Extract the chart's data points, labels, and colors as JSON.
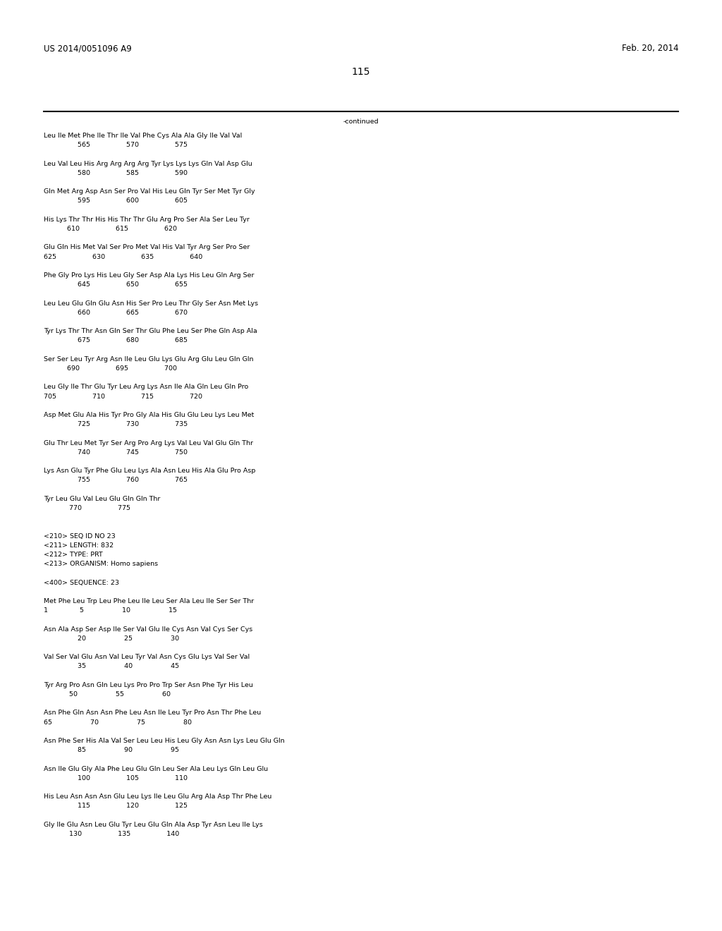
{
  "header_left": "US 2014/0051096 A9",
  "header_right": "Feb. 20, 2014",
  "page_number": "115",
  "continued_label": "-continued",
  "background_color": "#ffffff",
  "text_color": "#000000",
  "font_size": 6.8,
  "header_font_size": 8.5,
  "page_num_font_size": 10,
  "content_lines": [
    "Leu Ile Met Phe Ile Thr Ile Val Phe Cys Ala Ala Gly Ile Val Val",
    "                565                 570                 575",
    "",
    "Leu Val Leu His Arg Arg Arg Arg Tyr Lys Lys Lys Gln Val Asp Glu",
    "                580                 585                 590",
    "",
    "Gln Met Arg Asp Asn Ser Pro Val His Leu Gln Tyr Ser Met Tyr Gly",
    "                595                 600                 605",
    "",
    "His Lys Thr Thr His His Thr Thr Glu Arg Pro Ser Ala Ser Leu Tyr",
    "           610                 615                 620",
    "",
    "Glu Gln His Met Val Ser Pro Met Val His Val Tyr Arg Ser Pro Ser",
    "625                 630                 635                 640",
    "",
    "Phe Gly Pro Lys His Leu Gly Ser Asp Ala Lys His Leu Gln Arg Ser",
    "                645                 650                 655",
    "",
    "Leu Leu Glu Gln Glu Asn His Ser Pro Leu Thr Gly Ser Asn Met Lys",
    "                660                 665                 670",
    "",
    "Tyr Lys Thr Thr Asn Gln Ser Thr Glu Phe Leu Ser Phe Gln Asp Ala",
    "                675                 680                 685",
    "",
    "Ser Ser Leu Tyr Arg Asn Ile Leu Glu Lys Glu Arg Glu Leu Gln Gln",
    "           690                 695                 700",
    "",
    "Leu Gly Ile Thr Glu Tyr Leu Arg Lys Asn Ile Ala Gln Leu Gln Pro",
    "705                 710                 715                 720",
    "",
    "Asp Met Glu Ala His Tyr Pro Gly Ala His Glu Glu Leu Lys Leu Met",
    "                725                 730                 735",
    "",
    "Glu Thr Leu Met Tyr Ser Arg Pro Arg Lys Val Leu Val Glu Gln Thr",
    "                740                 745                 750",
    "",
    "Lys Asn Glu Tyr Phe Glu Leu Lys Ala Asn Leu His Ala Glu Pro Asp",
    "                755                 760                 765",
    "",
    "Tyr Leu Glu Val Leu Glu Gln Gln Thr",
    "            770                 775",
    "",
    "",
    "<210> SEQ ID NO 23",
    "<211> LENGTH: 832",
    "<212> TYPE: PRT",
    "<213> ORGANISM: Homo sapiens",
    "",
    "<400> SEQUENCE: 23",
    "",
    "Met Phe Leu Trp Leu Phe Leu Ile Leu Ser Ala Leu Ile Ser Ser Thr",
    "1               5                  10                  15",
    "",
    "Asn Ala Asp Ser Asp Ile Ser Val Glu Ile Cys Asn Val Cys Ser Cys",
    "                20                  25                  30",
    "",
    "Val Ser Val Glu Asn Val Leu Tyr Val Asn Cys Glu Lys Val Ser Val",
    "                35                  40                  45",
    "",
    "Tyr Arg Pro Asn Gln Leu Lys Pro Pro Trp Ser Asn Phe Tyr His Leu",
    "            50                  55                  60",
    "",
    "Asn Phe Gln Asn Asn Phe Leu Asn Ile Leu Tyr Pro Asn Thr Phe Leu",
    "65                  70                  75                  80",
    "",
    "Asn Phe Ser His Ala Val Ser Leu Leu His Leu Gly Asn Asn Lys Leu Glu Gln",
    "                85                  90                  95",
    "",
    "Asn Ile Glu Gly Ala Phe Leu Glu Gln Leu Ser Ala Leu Lys Gln Leu Glu",
    "                100                 105                 110",
    "",
    "His Leu Asn Asn Asn Glu Leu Lys Ile Leu Glu Arg Ala Asp Thr Phe Leu",
    "                115                 120                 125",
    "",
    "Gly Ile Glu Asn Leu Glu Tyr Leu Glu Gln Ala Asp Tyr Asn Leu Ile Lys",
    "            130                 135                 140"
  ]
}
